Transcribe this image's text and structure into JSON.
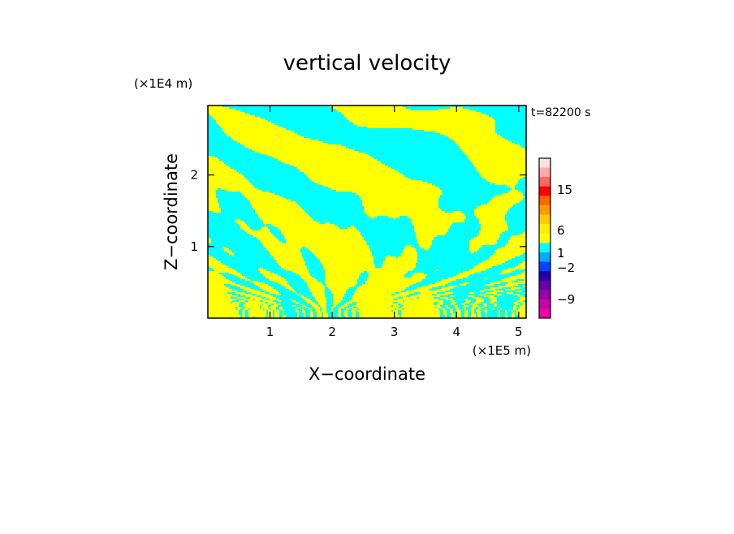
{
  "chart_data": {
    "type": "heatmap",
    "title": "vertical velocity",
    "xlabel": "X−coordinate",
    "ylabel": "Z−coordinate",
    "x_scale_label": "(×1E5 m)",
    "y_scale_label": "(×1E4 m)",
    "time_label": "t=82200 s",
    "xlim": [
      0,
      5.12
    ],
    "ylim": [
      0,
      2.97
    ],
    "x_ticks": [
      {
        "value": 1,
        "label": "1"
      },
      {
        "value": 2,
        "label": "2"
      },
      {
        "value": 3,
        "label": "3"
      },
      {
        "value": 4,
        "label": "4"
      },
      {
        "value": 5,
        "label": "5"
      }
    ],
    "y_ticks": [
      {
        "value": 1,
        "label": "1"
      },
      {
        "value": 2,
        "label": "2"
      }
    ],
    "colors": {
      "positive_small": "#ffff00",
      "negative_small": "#00ffff",
      "frame": "#000000"
    },
    "colorbar": {
      "levels": [
        {
          "value": -12,
          "color": "#ee00aa"
        },
        {
          "value": -9,
          "color": "#cc00aa"
        },
        {
          "value": -7,
          "color": "#9900aa"
        },
        {
          "value": -5,
          "color": "#6600aa"
        },
        {
          "value": -3,
          "color": "#2200aa"
        },
        {
          "value": -2,
          "color": "#0044ff"
        },
        {
          "value": -1,
          "color": "#00aaff"
        },
        {
          "value": 0,
          "color": "#00ffff"
        },
        {
          "value": 0.5,
          "color": "#ffff00"
        },
        {
          "value": 1,
          "color": "#ffee00"
        },
        {
          "value": 2,
          "color": "#ffcc00"
        },
        {
          "value": 4,
          "color": "#ff9900"
        },
        {
          "value": 6,
          "color": "#ff6600"
        },
        {
          "value": 9,
          "color": "#ff0000"
        },
        {
          "value": 12,
          "color": "#ff6666"
        },
        {
          "value": 15,
          "color": "#ffaaaa"
        },
        {
          "value": 20,
          "color": "#ffe0e0"
        }
      ],
      "tick_labels": [
        "15",
        "6",
        "1",
        "−2",
        "−9"
      ]
    },
    "field_description_colors": [
      "yellow",
      "cyan"
    ]
  }
}
